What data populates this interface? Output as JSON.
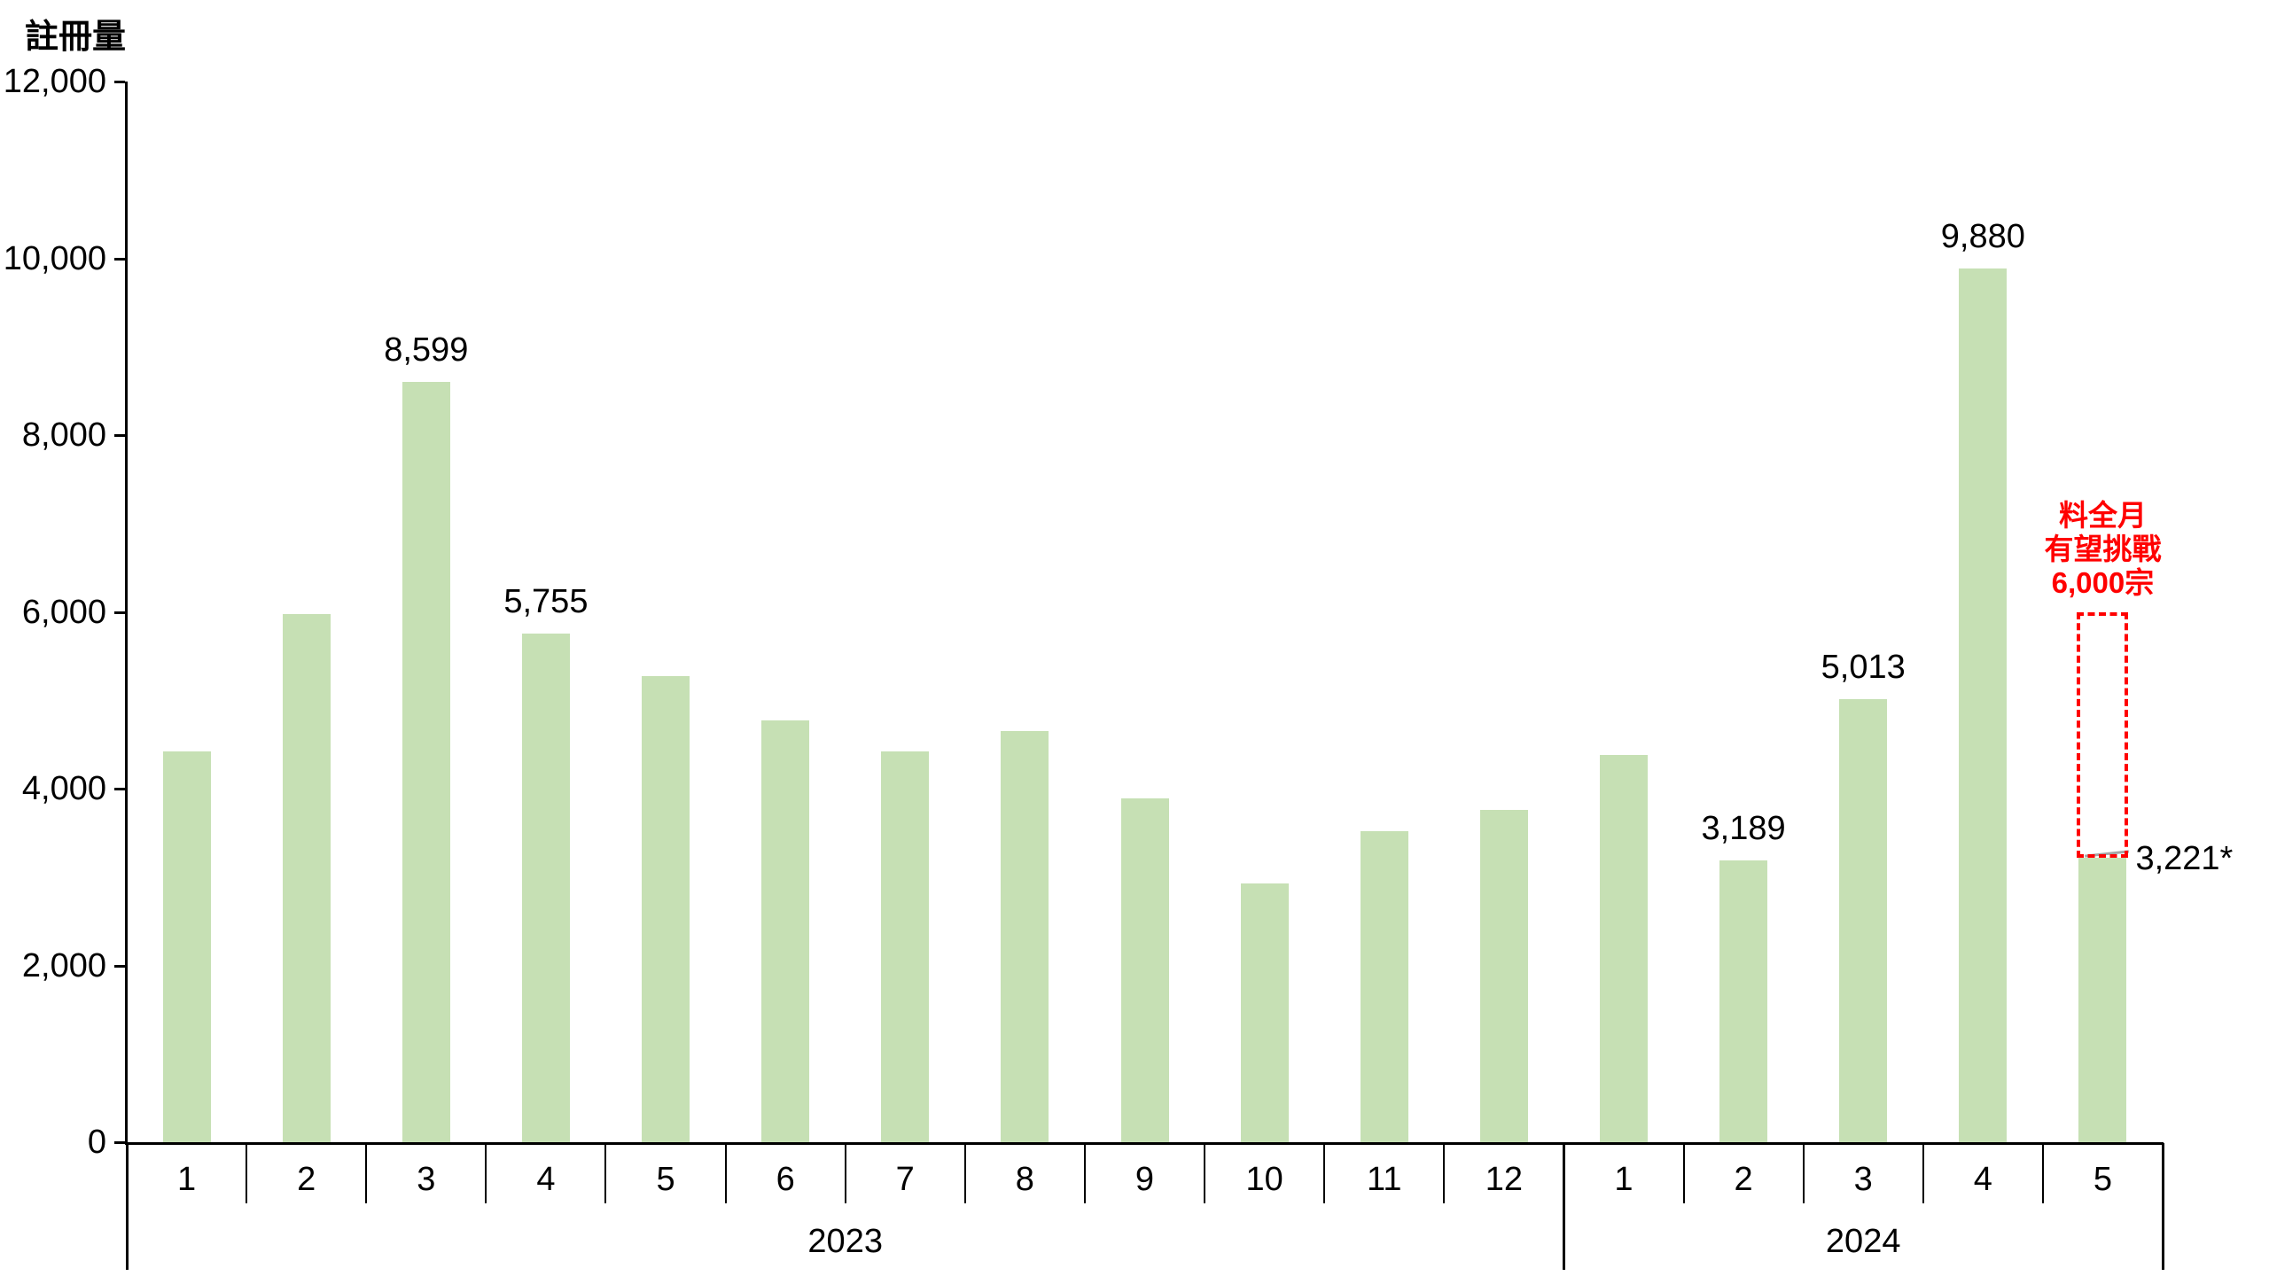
{
  "title": "註冊量",
  "y_axis": {
    "tick_labels": [
      "12,000",
      "10,000",
      "8,000",
      "6,000",
      "4,000",
      "2,000",
      "0"
    ],
    "max": 12000,
    "step": 2000
  },
  "year_groups": [
    {
      "year": "2023",
      "month_count": 12
    },
    {
      "year": "2024",
      "month_count": 5
    }
  ],
  "bars": [
    {
      "year": "2023",
      "month": "1",
      "value": 4420
    },
    {
      "year": "2023",
      "month": "2",
      "value": 5975
    },
    {
      "year": "2023",
      "month": "3",
      "value": 8599,
      "label": "8,599"
    },
    {
      "year": "2023",
      "month": "4",
      "value": 5755,
      "label": "5,755"
    },
    {
      "year": "2023",
      "month": "5",
      "value": 5270
    },
    {
      "year": "2023",
      "month": "6",
      "value": 4770
    },
    {
      "year": "2023",
      "month": "7",
      "value": 4420
    },
    {
      "year": "2023",
      "month": "8",
      "value": 4650
    },
    {
      "year": "2023",
      "month": "9",
      "value": 3890
    },
    {
      "year": "2023",
      "month": "10",
      "value": 2930
    },
    {
      "year": "2023",
      "month": "11",
      "value": 3520
    },
    {
      "year": "2023",
      "month": "12",
      "value": 3760
    },
    {
      "year": "2024",
      "month": "1",
      "value": 4380
    },
    {
      "year": "2024",
      "month": "2",
      "value": 3189,
      "label": "3,189"
    },
    {
      "year": "2024",
      "month": "3",
      "value": 5013,
      "label": "5,013"
    },
    {
      "year": "2024",
      "month": "4",
      "value": 9880,
      "label": "9,880"
    },
    {
      "year": "2024",
      "month": "5",
      "value": 3221,
      "label": "3,221*",
      "label_placement": "right"
    }
  ],
  "annotation": {
    "text_lines": [
      "料全月",
      "有望挑戰",
      "6,000宗"
    ],
    "box_top_value": 6000,
    "attached_bar_index": 16
  },
  "colors": {
    "bar": "#C6E0B4",
    "axis": "#000000",
    "annotation": "#FF0000",
    "leader_line": "#A6A6A6",
    "background": "#FFFFFF"
  },
  "chart_data": {
    "type": "bar",
    "title": "註冊量",
    "xlabel": "",
    "ylabel": "註冊量",
    "ylim": [
      0,
      12000
    ],
    "ytick_step": 2000,
    "grid": false,
    "legend": "none",
    "categories": [
      "2023-1",
      "2023-2",
      "2023-3",
      "2023-4",
      "2023-5",
      "2023-6",
      "2023-7",
      "2023-8",
      "2023-9",
      "2023-10",
      "2023-11",
      "2023-12",
      "2024-1",
      "2024-2",
      "2024-3",
      "2024-4",
      "2024-5"
    ],
    "values": [
      4420,
      5975,
      8599,
      5755,
      5270,
      4770,
      4420,
      4650,
      3890,
      2930,
      3520,
      3760,
      4380,
      3189,
      5013,
      9880,
      3221
    ],
    "data_labels": {
      "2023-3": "8,599",
      "2023-4": "5,755",
      "2024-2": "3,189",
      "2024-3": "5,013",
      "2024-4": "9,880",
      "2024-5": "3,221*"
    },
    "annotation": {
      "text": "料全月 有望挑戰 6,000宗",
      "target_category": "2024-5",
      "dashed_box_range": [
        3221,
        6000
      ]
    }
  }
}
